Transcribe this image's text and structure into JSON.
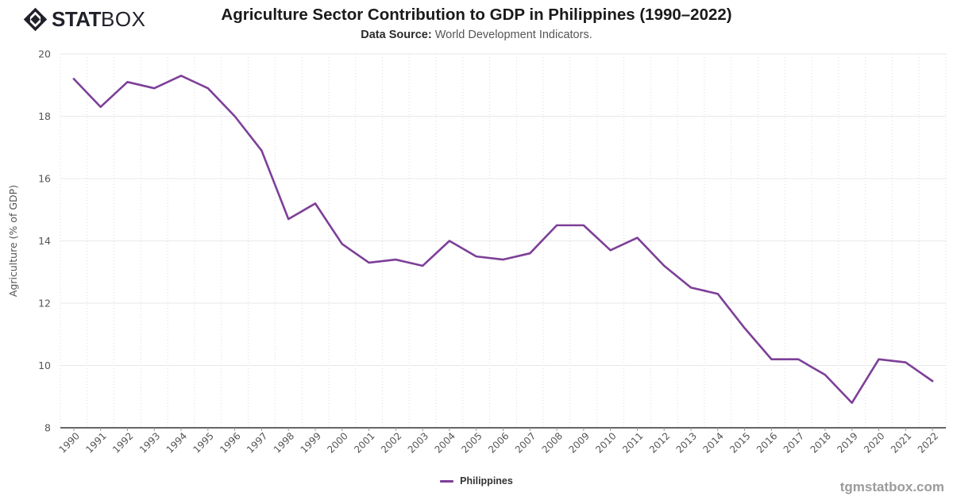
{
  "brand": {
    "stat": "STAT",
    "box": "BOX",
    "watermark": "tgmstatbox.com",
    "logo_color": "#21212b"
  },
  "header": {
    "title": "Agriculture Sector Contribution to GDP in Philippines (1990–2022)",
    "source_label": "Data Source:",
    "source_text": " World Development Indicators."
  },
  "chart_data": {
    "type": "line",
    "title": "Agriculture Sector Contribution to GDP in Philippines (1990–2022)",
    "xlabel": "",
    "ylabel": "Agriculture (% of GDP)",
    "x": [
      1990,
      1991,
      1992,
      1993,
      1994,
      1995,
      1996,
      1997,
      1998,
      1999,
      2000,
      2001,
      2002,
      2003,
      2004,
      2005,
      2006,
      2007,
      2008,
      2009,
      2010,
      2011,
      2012,
      2013,
      2014,
      2015,
      2016,
      2017,
      2018,
      2019,
      2020,
      2021,
      2022
    ],
    "series": [
      {
        "name": "Philippines",
        "color": "#7d3f98",
        "values": [
          19.2,
          18.3,
          19.1,
          18.9,
          19.3,
          18.9,
          18.0,
          16.9,
          14.7,
          15.2,
          13.9,
          13.3,
          13.4,
          13.2,
          14.0,
          13.5,
          13.4,
          13.6,
          14.5,
          14.5,
          13.7,
          14.1,
          13.2,
          12.5,
          12.3,
          11.2,
          10.2,
          10.2,
          9.7,
          8.8,
          10.2,
          10.1,
          9.5
        ]
      }
    ],
    "ylim": [
      8,
      20
    ],
    "yticks": [
      8,
      10,
      12,
      14,
      16,
      18,
      20
    ],
    "grid": true,
    "legend_position": "bottom",
    "colors": {
      "h_gridline": "#e8e8e8",
      "v_gridline": "#dcdcdc",
      "axis_line": "#333333",
      "tick_text": "#555555"
    }
  }
}
